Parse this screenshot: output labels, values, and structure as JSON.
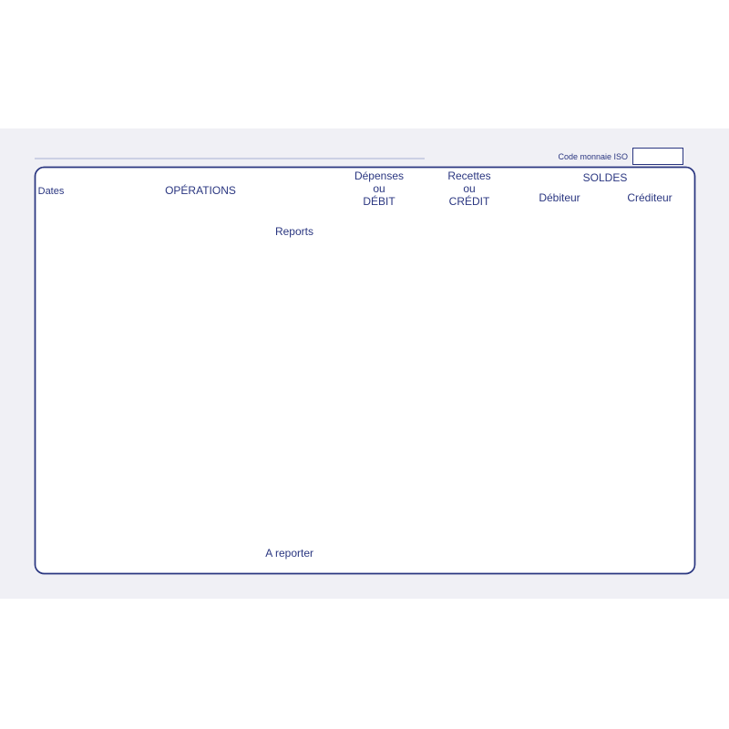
{
  "iso_code_label": "Code monnaie ISO",
  "headers": {
    "dates": "Dates",
    "operations": "OPÉRATIONS",
    "debit": [
      "Dépenses",
      "ou",
      "DÉBIT"
    ],
    "credit": [
      "Recettes",
      "ou",
      "CRÉDIT"
    ],
    "soldes": "SOLDES",
    "debiteur": "Débiteur",
    "crediteur": "Créditeur"
  },
  "reports_label": "Reports",
  "a_reporter_label": "A reporter",
  "colors": {
    "ink": "#2a3680",
    "rule": "#a9b1d2",
    "background": "#f0f0f5"
  }
}
